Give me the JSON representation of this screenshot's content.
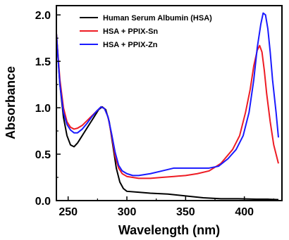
{
  "chart_data": {
    "type": "line",
    "title": "",
    "xlabel": "Wavelength (nm)",
    "ylabel": "Absorbance",
    "xlim": [
      240,
      432
    ],
    "ylim": [
      0,
      2.1
    ],
    "x_ticks": [
      "250",
      "300",
      "350",
      "400"
    ],
    "y_ticks": [
      "0.0",
      "0.5",
      "1.0",
      "1.5",
      "2.0"
    ],
    "x_tick_values": [
      250,
      300,
      350,
      400
    ],
    "y_tick_values": [
      0.0,
      0.5,
      1.0,
      1.5,
      2.0
    ],
    "grid": false,
    "legend_position": "top",
    "series": [
      {
        "name": "Human Serum Albumin (HSA)",
        "color": "#000000",
        "points": [
          [
            240,
            1.8
          ],
          [
            243,
            1.25
          ],
          [
            246,
            0.9
          ],
          [
            249,
            0.7
          ],
          [
            252,
            0.6
          ],
          [
            255,
            0.58
          ],
          [
            258,
            0.62
          ],
          [
            261,
            0.68
          ],
          [
            264,
            0.74
          ],
          [
            268,
            0.82
          ],
          [
            272,
            0.9
          ],
          [
            276,
            0.98
          ],
          [
            279,
            1.01
          ],
          [
            282,
            0.98
          ],
          [
            285,
            0.85
          ],
          [
            288,
            0.6
          ],
          [
            291,
            0.35
          ],
          [
            294,
            0.2
          ],
          [
            297,
            0.13
          ],
          [
            300,
            0.1
          ],
          [
            310,
            0.09
          ],
          [
            320,
            0.08
          ],
          [
            335,
            0.07
          ],
          [
            350,
            0.05
          ],
          [
            365,
            0.03
          ],
          [
            380,
            0.02
          ],
          [
            395,
            0.02
          ],
          [
            410,
            0.015
          ],
          [
            420,
            0.015
          ],
          [
            429,
            0.01
          ]
        ]
      },
      {
        "name": "HSA + PPIX-Sn",
        "color": "#ee1c24",
        "points": [
          [
            240,
            1.8
          ],
          [
            243,
            1.3
          ],
          [
            246,
            1.0
          ],
          [
            249,
            0.85
          ],
          [
            252,
            0.79
          ],
          [
            255,
            0.77
          ],
          [
            258,
            0.78
          ],
          [
            262,
            0.81
          ],
          [
            266,
            0.86
          ],
          [
            270,
            0.91
          ],
          [
            274,
            0.96
          ],
          [
            278,
            1.01
          ],
          [
            281,
            0.99
          ],
          [
            284,
            0.9
          ],
          [
            287,
            0.7
          ],
          [
            290,
            0.48
          ],
          [
            293,
            0.35
          ],
          [
            296,
            0.29
          ],
          [
            300,
            0.26
          ],
          [
            310,
            0.24
          ],
          [
            320,
            0.24
          ],
          [
            330,
            0.25
          ],
          [
            340,
            0.26
          ],
          [
            350,
            0.27
          ],
          [
            360,
            0.29
          ],
          [
            370,
            0.32
          ],
          [
            380,
            0.4
          ],
          [
            390,
            0.55
          ],
          [
            396,
            0.7
          ],
          [
            401,
            0.95
          ],
          [
            405,
            1.2
          ],
          [
            408,
            1.45
          ],
          [
            411,
            1.62
          ],
          [
            413,
            1.67
          ],
          [
            415,
            1.6
          ],
          [
            417,
            1.4
          ],
          [
            419,
            1.15
          ],
          [
            422,
            0.85
          ],
          [
            425,
            0.6
          ],
          [
            429,
            0.4
          ]
        ]
      },
      {
        "name": "HSA + PPIX-Zn",
        "color": "#1a1aff",
        "points": [
          [
            240,
            1.8
          ],
          [
            243,
            1.25
          ],
          [
            246,
            0.95
          ],
          [
            249,
            0.82
          ],
          [
            252,
            0.76
          ],
          [
            255,
            0.73
          ],
          [
            258,
            0.73
          ],
          [
            262,
            0.77
          ],
          [
            266,
            0.83
          ],
          [
            270,
            0.9
          ],
          [
            274,
            0.96
          ],
          [
            278,
            1.01
          ],
          [
            281,
            0.99
          ],
          [
            284,
            0.9
          ],
          [
            287,
            0.72
          ],
          [
            290,
            0.52
          ],
          [
            293,
            0.38
          ],
          [
            296,
            0.32
          ],
          [
            300,
            0.29
          ],
          [
            305,
            0.27
          ],
          [
            310,
            0.27
          ],
          [
            320,
            0.29
          ],
          [
            330,
            0.32
          ],
          [
            340,
            0.35
          ],
          [
            350,
            0.35
          ],
          [
            360,
            0.35
          ],
          [
            370,
            0.35
          ],
          [
            378,
            0.37
          ],
          [
            386,
            0.45
          ],
          [
            393,
            0.55
          ],
          [
            399,
            0.7
          ],
          [
            404,
            0.95
          ],
          [
            408,
            1.3
          ],
          [
            411,
            1.65
          ],
          [
            414,
            1.9
          ],
          [
            416,
            2.02
          ],
          [
            418,
            2.0
          ],
          [
            420,
            1.85
          ],
          [
            422,
            1.6
          ],
          [
            424,
            1.3
          ],
          [
            427,
            0.95
          ],
          [
            429,
            0.68
          ]
        ]
      }
    ]
  }
}
